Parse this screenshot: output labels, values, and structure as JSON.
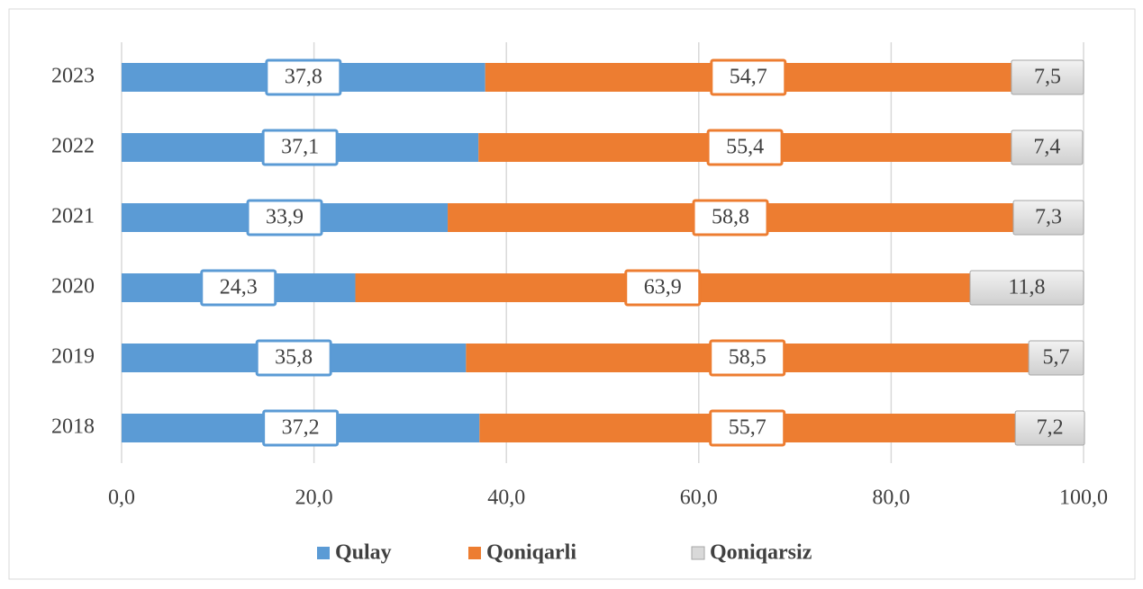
{
  "chart_data": {
    "type": "stacked_barh",
    "categories": [
      "2023",
      "2022",
      "2021",
      "2020",
      "2019",
      "2018"
    ],
    "series": [
      {
        "name": "Qulay",
        "color": "#5b9bd5",
        "values": [
          37.8,
          37.1,
          33.9,
          24.3,
          35.8,
          37.2
        ],
        "value_labels": [
          "37,8",
          "37,1",
          "33,9",
          "24,3",
          "35,8",
          "37,2"
        ]
      },
      {
        "name": "Qoniqarli",
        "color": "#ed7d31",
        "values": [
          54.7,
          55.4,
          58.8,
          63.9,
          58.5,
          55.7
        ],
        "value_labels": [
          "54,7",
          "55,4",
          "58,8",
          "63,9",
          "58,5",
          "55,7"
        ]
      },
      {
        "name": "Qoniqarsiz",
        "color": "#d9d9d9",
        "values": [
          7.5,
          7.4,
          7.3,
          11.8,
          5.7,
          7.2
        ],
        "value_labels": [
          "7,5",
          "7,4",
          "7,3",
          "11,8",
          "5,7",
          "7,2"
        ]
      }
    ],
    "xlim": [
      0,
      100
    ],
    "xticks": [
      {
        "value": 0,
        "label": "0,0"
      },
      {
        "value": 20,
        "label": "20,0"
      },
      {
        "value": 40,
        "label": "40,0"
      },
      {
        "value": 60,
        "label": "60,0"
      },
      {
        "value": 80,
        "label": "80,0"
      },
      {
        "value": 100,
        "label": "100,0"
      }
    ],
    "grid": true,
    "legend": "bottom"
  }
}
